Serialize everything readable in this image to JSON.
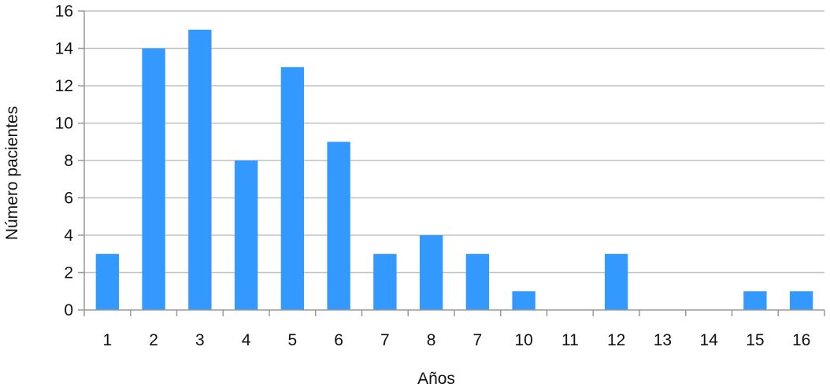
{
  "chart_data": {
    "type": "bar",
    "title": "",
    "xlabel": "Años",
    "ylabel": "Número pacientes",
    "categories": [
      "1",
      "2",
      "3",
      "4",
      "5",
      "6",
      "7",
      "8",
      "7",
      "10",
      "11",
      "12",
      "13",
      "14",
      "15",
      "16"
    ],
    "values": [
      3,
      14,
      15,
      8,
      13,
      9,
      3,
      4,
      3,
      1,
      0,
      3,
      0,
      0,
      1,
      1
    ],
    "ylim": [
      0,
      16
    ],
    "yticks": [
      0,
      2,
      4,
      6,
      8,
      10,
      12,
      14,
      16
    ],
    "grid": true,
    "legend": "none",
    "bar_color": "#3399ff",
    "grid_color": "#c0c0c0",
    "axis_color": "#999999"
  }
}
